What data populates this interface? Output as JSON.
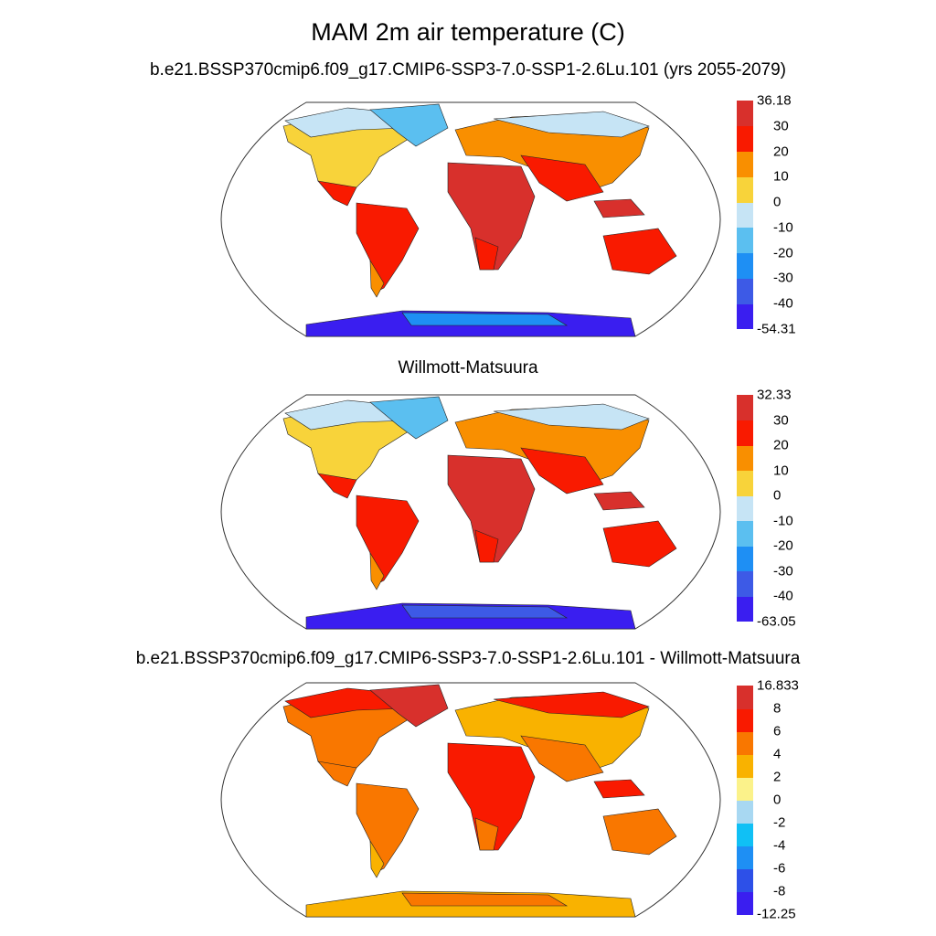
{
  "title": "MAM 2m air temperature (C)",
  "panels": [
    {
      "subtitle": "b.e21.BSSP370cmip6.f09_g17.CMIP6-SSP3-7.0-SSP1-2.6Lu.101 (yrs 2055-2079)",
      "variant": "model",
      "colorbar": {
        "colors": [
          "#3a1ef0",
          "#3d5ae6",
          "#1e8ff4",
          "#5bbff0",
          "#c6e4f5",
          "#f8d33a",
          "#f98f00",
          "#f91a00",
          "#d8302c"
        ],
        "labels": [
          "-54.31",
          "-40",
          "-30",
          "-20",
          "-10",
          "0",
          "10",
          "20",
          "30",
          "36.18"
        ]
      }
    },
    {
      "subtitle": "Willmott-Matsuura",
      "variant": "obs",
      "colorbar": {
        "colors": [
          "#3a1ef0",
          "#3d5ae6",
          "#1e8ff4",
          "#5bbff0",
          "#c6e4f5",
          "#f8d33a",
          "#f98f00",
          "#f91a00",
          "#d8302c"
        ],
        "labels": [
          "-63.05",
          "-40",
          "-30",
          "-20",
          "-10",
          "0",
          "10",
          "20",
          "30",
          "32.33"
        ]
      }
    },
    {
      "subtitle": "b.e21.BSSP370cmip6.f09_g17.CMIP6-SSP3-7.0-SSP1-2.6Lu.101 - Willmott-Matsuura",
      "variant": "diff",
      "colorbar": {
        "colors": [
          "#3a1ef0",
          "#2d50e8",
          "#1e8ff4",
          "#10c0f5",
          "#a8d8f2",
          "#fbf28a",
          "#f9b200",
          "#f97700",
          "#f91a00",
          "#d8302c"
        ],
        "labels": [
          "-12.25",
          "-8",
          "-6",
          "-4",
          "-2",
          "0",
          "2",
          "4",
          "6",
          "8",
          "16.833"
        ]
      }
    }
  ]
}
